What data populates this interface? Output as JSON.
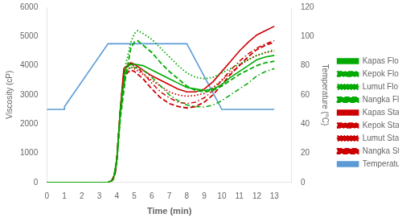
{
  "chart_data": {
    "type": "line",
    "xlabel": "Time (min)",
    "ylabel": "Viscosity (cP)",
    "y2label": "Temperature (°C)",
    "xlim": [
      0,
      14
    ],
    "ylim": [
      0,
      6000
    ],
    "y2lim": [
      0,
      120
    ],
    "xticks": [
      0,
      1,
      2,
      3,
      4,
      5,
      6,
      7,
      8,
      9,
      10,
      11,
      12,
      13
    ],
    "yticks": [
      0,
      1000,
      2000,
      3000,
      4000,
      5000,
      6000
    ],
    "y2ticks": [
      0,
      20,
      40,
      60,
      80,
      100,
      120
    ],
    "grid": false,
    "legend": "right",
    "series": [
      {
        "name": "Kapas Flour",
        "color": "#00aa00",
        "line_style": "solid",
        "x": [
          0,
          3.5,
          3.8,
          4.0,
          4.2,
          4.5,
          4.8,
          5.0,
          5.5,
          6.0,
          6.5,
          7.0,
          7.5,
          8.0,
          8.5,
          9.0,
          9.5,
          10.0,
          10.5,
          11.0,
          11.5,
          12.0,
          12.5,
          13.0
        ],
        "values": [
          0,
          0,
          100,
          800,
          2500,
          3900,
          4050,
          4050,
          4000,
          3850,
          3700,
          3550,
          3400,
          3250,
          3200,
          3150,
          3200,
          3350,
          3600,
          3800,
          4000,
          4200,
          4300,
          4350
        ]
      },
      {
        "name": "Kepok Flour",
        "color": "#00aa00",
        "line_style": "dashdot",
        "x": [
          0,
          3.5,
          3.8,
          4.0,
          4.2,
          4.5,
          4.8,
          5.0,
          5.5,
          6.0,
          6.5,
          7.0,
          7.5,
          8.0,
          8.5,
          9.0,
          9.5,
          10.0,
          10.5,
          11.0,
          11.5,
          12.0,
          12.5,
          13.0
        ],
        "values": [
          0,
          0,
          100,
          700,
          2300,
          3750,
          3950,
          3950,
          3850,
          3600,
          3300,
          3000,
          2800,
          2650,
          2600,
          2580,
          2650,
          2800,
          3000,
          3200,
          3400,
          3650,
          3800,
          3900
        ]
      },
      {
        "name": "Lumut Flour",
        "color": "#00aa00",
        "line_style": "dotted",
        "x": [
          0,
          3.5,
          3.8,
          4.0,
          4.2,
          4.5,
          4.8,
          5.0,
          5.2,
          5.5,
          6.0,
          6.5,
          7.0,
          7.5,
          8.0,
          8.5,
          9.0,
          9.5,
          10.0,
          10.5,
          11.0,
          11.5,
          12.0,
          12.5,
          13.0
        ],
        "values": [
          0,
          0,
          100,
          800,
          2500,
          4000,
          4800,
          5100,
          5200,
          5100,
          4900,
          4600,
          4300,
          4000,
          3750,
          3600,
          3550,
          3600,
          3750,
          3900,
          4050,
          4200,
          4350,
          4450,
          4550
        ]
      },
      {
        "name": "Nangka Flour",
        "color": "#00aa00",
        "line_style": "dashed",
        "x": [
          0,
          3.5,
          3.8,
          4.0,
          4.2,
          4.5,
          4.8,
          5.0,
          5.2,
          5.5,
          6.0,
          6.5,
          7.0,
          7.5,
          8.0,
          8.5,
          9.0,
          9.5,
          10.0,
          10.5,
          11.0,
          11.5,
          12.0,
          12.5,
          13.0
        ],
        "values": [
          0,
          0,
          100,
          700,
          2200,
          3600,
          4600,
          4800,
          4850,
          4700,
          4450,
          4100,
          3800,
          3550,
          3300,
          3150,
          3100,
          3150,
          3300,
          3500,
          3700,
          3850,
          4000,
          4100,
          4150
        ]
      },
      {
        "name": "Kapas Starch",
        "color": "#cc0000",
        "line_style": "solid",
        "x": [
          0,
          3.5,
          3.7,
          3.9,
          4.0,
          4.2,
          4.4,
          4.6,
          4.8,
          5.0,
          5.5,
          6.0,
          6.5,
          7.0,
          7.5,
          8.0,
          8.5,
          9.0,
          9.5,
          10.0,
          10.5,
          11.0,
          11.5,
          12.0,
          12.5,
          13.0
        ],
        "values": [
          0,
          0,
          50,
          300,
          800,
          2500,
          3900,
          4000,
          4100,
          4050,
          3850,
          3650,
          3500,
          3350,
          3200,
          3100,
          3100,
          3200,
          3450,
          3800,
          4150,
          4500,
          4800,
          5050,
          5200,
          5350
        ]
      },
      {
        "name": "Kepok Starch",
        "color": "#cc0000",
        "line_style": "dashdot",
        "x": [
          0,
          3.5,
          3.7,
          3.9,
          4.0,
          4.2,
          4.4,
          4.6,
          4.8,
          5.0,
          5.5,
          6.0,
          6.5,
          7.0,
          7.5,
          8.0,
          8.5,
          9.0,
          9.5,
          10.0,
          10.5,
          11.0,
          11.5,
          12.0,
          12.5,
          13.0
        ],
        "values": [
          0,
          0,
          50,
          300,
          800,
          2500,
          3800,
          3950,
          4050,
          4000,
          3750,
          3400,
          3100,
          2900,
          2750,
          2700,
          2750,
          2900,
          3150,
          3500,
          3850,
          4150,
          4400,
          4600,
          4750,
          4850
        ]
      },
      {
        "name": "Lumut Starch",
        "color": "#cc0000",
        "line_style": "dotted",
        "x": [
          0,
          3.5,
          3.7,
          3.9,
          4.0,
          4.2,
          4.4,
          4.6,
          4.8,
          5.0,
          5.5,
          6.0,
          6.5,
          7.0,
          7.5,
          8.0,
          8.5,
          9.0,
          9.5,
          10.0,
          10.5,
          11.0,
          11.5,
          12.0,
          12.5,
          13.0
        ],
        "values": [
          0,
          0,
          50,
          300,
          800,
          2500,
          3700,
          3850,
          3950,
          3900,
          3700,
          3500,
          3300,
          3100,
          3000,
          2950,
          2980,
          3050,
          3250,
          3500,
          3750,
          4000,
          4200,
          4350,
          4450,
          4500
        ]
      },
      {
        "name": "Nangka Starch",
        "color": "#cc0000",
        "line_style": "dashed",
        "x": [
          0,
          3.5,
          3.7,
          3.9,
          4.0,
          4.2,
          4.4,
          4.6,
          4.8,
          5.0,
          5.5,
          6.0,
          6.5,
          7.0,
          7.5,
          8.0,
          8.5,
          9.0,
          9.5,
          10.0,
          10.5,
          11.0,
          11.5,
          12.0,
          12.5,
          13.0
        ],
        "values": [
          0,
          0,
          50,
          300,
          800,
          2400,
          3600,
          3750,
          3850,
          3800,
          3550,
          3200,
          2900,
          2700,
          2600,
          2550,
          2600,
          2750,
          3000,
          3350,
          3700,
          4000,
          4300,
          4550,
          4700,
          4800
        ]
      },
      {
        "name": "Temperature",
        "color": "#5b9bd5",
        "line_style": "solid",
        "axis": "y2",
        "x": [
          0,
          1.0,
          1.01,
          3.5,
          5.0,
          8.0,
          10.0,
          10.01,
          13
        ],
        "values": [
          50,
          50,
          52,
          95,
          95,
          95,
          50,
          50,
          50
        ]
      }
    ]
  }
}
